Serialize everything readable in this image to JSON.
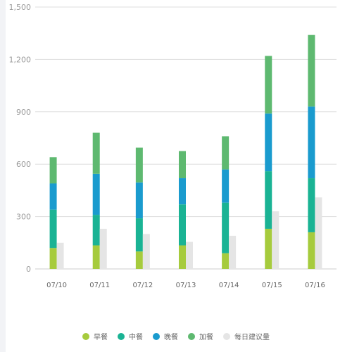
{
  "chart_data": {
    "type": "bar",
    "categories": [
      "07/10",
      "07/11",
      "07/12",
      "07/13",
      "07/14",
      "07/15",
      "07/16"
    ],
    "series": [
      {
        "name": "早餐",
        "stack": "meals",
        "color": "#a6cb3d",
        "values": [
          120,
          135,
          100,
          135,
          90,
          230,
          210
        ]
      },
      {
        "name": "中餐",
        "stack": "meals",
        "color": "#1ab394",
        "values": [
          220,
          175,
          190,
          235,
          290,
          330,
          310
        ]
      },
      {
        "name": "晚餐",
        "stack": "meals",
        "color": "#1a9bce",
        "values": [
          150,
          235,
          205,
          150,
          190,
          330,
          410
        ]
      },
      {
        "name": "加餐",
        "stack": "meals",
        "color": "#5eb970",
        "values": [
          150,
          235,
          200,
          155,
          190,
          330,
          410
        ]
      },
      {
        "name": "每日建议量",
        "stack": "recommended",
        "color": "#e5e5e5",
        "values": [
          150,
          230,
          200,
          155,
          190,
          330,
          410
        ]
      }
    ],
    "ylim": [
      0,
      1500
    ],
    "yticks": [
      "0",
      "300",
      "600",
      "900",
      "1,200",
      "1,500"
    ],
    "grid": true,
    "legend_position": "bottom"
  }
}
